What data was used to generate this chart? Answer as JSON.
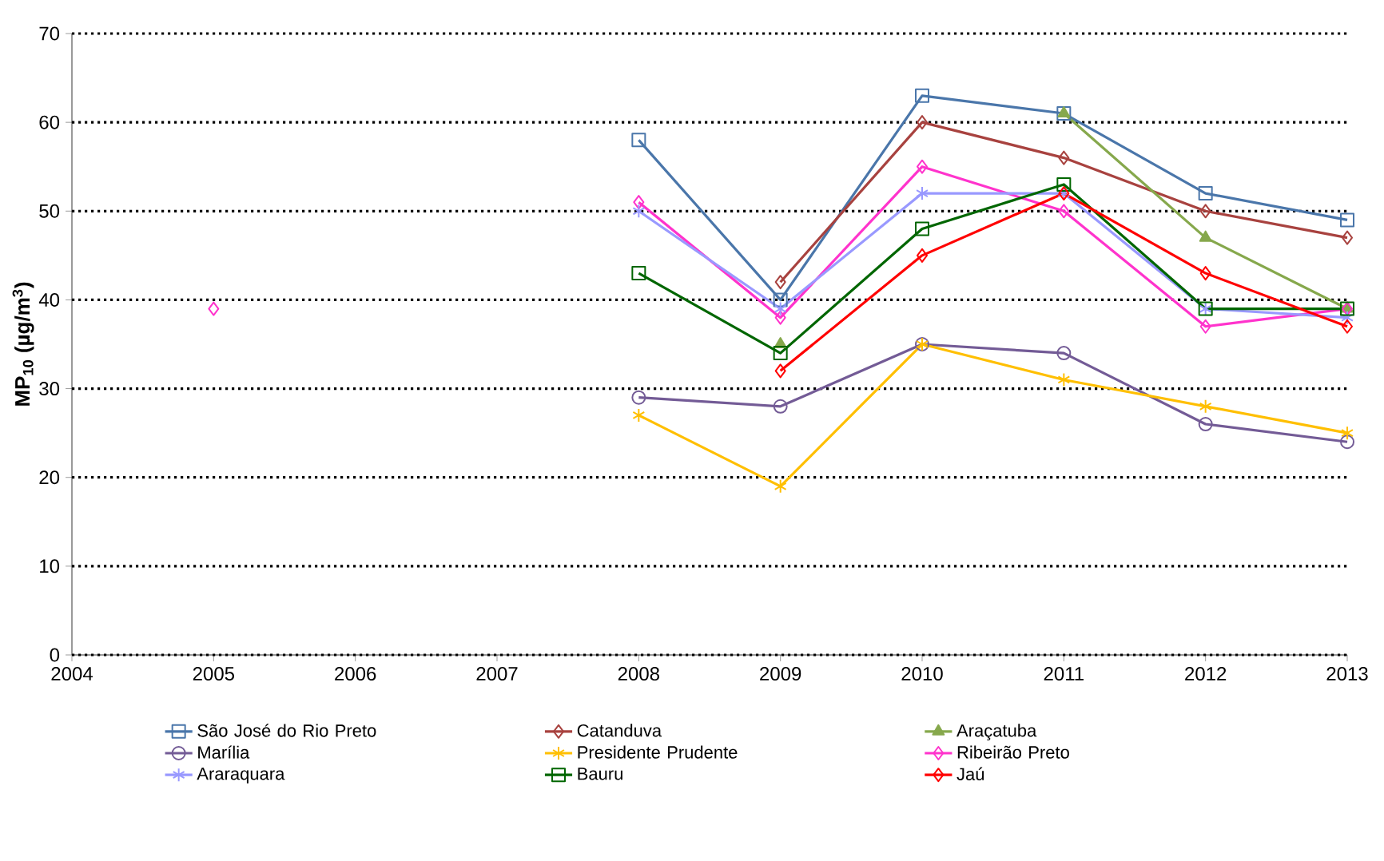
{
  "chart_data": {
    "type": "line",
    "ylabel": "**MP$_{10}$ (µg/m$^{3}$)**",
    "x": [
      2005,
      2006,
      2007,
      2008,
      2009,
      2010,
      2011,
      2012,
      2013
    ],
    "xlim": [
      2004,
      2013
    ],
    "xticks": [
      2004,
      2005,
      2006,
      2007,
      2008,
      2009,
      2010,
      2011,
      2012,
      2013
    ],
    "ylim": [
      0,
      70
    ],
    "yticks": [
      0,
      10,
      20,
      30,
      40,
      50,
      60,
      70
    ],
    "grid": "y",
    "legend": "bottom",
    "line_style": "solid",
    "series": [
      {
        "name": "São José do Rio Preto",
        "color": "#4a76aa",
        "marker": "square",
        "values": [
          null,
          null,
          null,
          58,
          40,
          63,
          61,
          52,
          49
        ]
      },
      {
        "name": "Catanduva",
        "color": "#a8423f",
        "marker": "diamond",
        "values": [
          null,
          null,
          null,
          null,
          42,
          60,
          56,
          50,
          47
        ]
      },
      {
        "name": "Araçatuba",
        "color": "#86a84c",
        "marker": "triangle",
        "values": [
          null,
          null,
          null,
          null,
          35,
          null,
          61,
          47,
          39
        ]
      },
      {
        "name": "Marília",
        "color": "#735b96",
        "marker": "circle",
        "values": [
          null,
          null,
          null,
          29,
          28,
          35,
          34,
          26,
          24
        ]
      },
      {
        "name": "Presidente Prudente",
        "color": "#ffbf00",
        "marker": "cross",
        "values": [
          null,
          null,
          null,
          27,
          19,
          35,
          31,
          28,
          25
        ]
      },
      {
        "name": "Ribeirão Preto",
        "color": "#ff33cc",
        "marker": "diamond",
        "values": [
          39,
          null,
          null,
          51,
          38,
          55,
          50,
          37,
          39
        ]
      },
      {
        "name": "Araraquara",
        "color": "#9999ff",
        "marker": "cross",
        "values": [
          null,
          null,
          null,
          50,
          39,
          52,
          52,
          39,
          38
        ]
      },
      {
        "name": "Bauru",
        "color": "#006600",
        "marker": "square",
        "values": [
          null,
          null,
          null,
          43,
          34,
          48,
          53,
          39,
          39
        ]
      },
      {
        "name": "Jaú",
        "color": "#ff0000",
        "marker": "diamond",
        "values": [
          null,
          null,
          null,
          null,
          32,
          45,
          52,
          43,
          37
        ]
      }
    ]
  }
}
